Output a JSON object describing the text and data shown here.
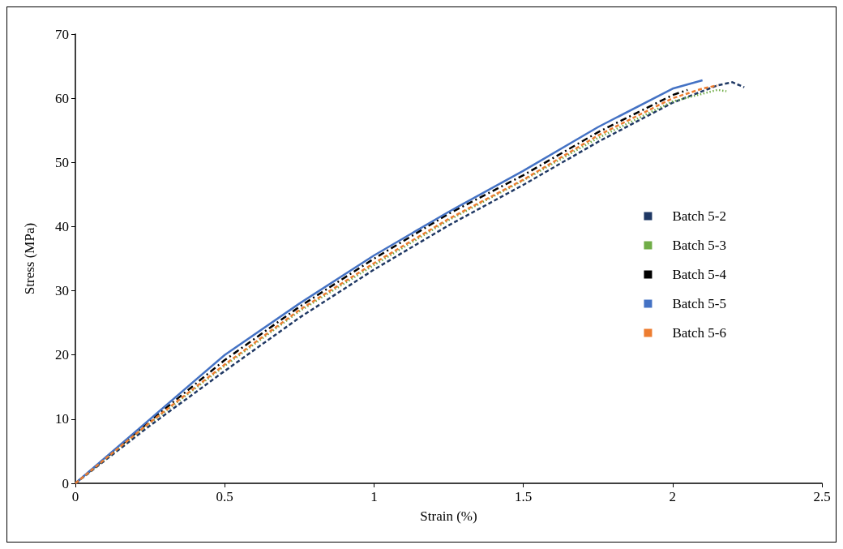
{
  "chart_data": {
    "type": "line",
    "xlabel": "Strain (%)",
    "ylabel": "Stress (MPa)",
    "xlim": [
      0,
      2.5
    ],
    "xticks": [
      0,
      0.5,
      1,
      1.5,
      2,
      2.5
    ],
    "ylim": [
      0,
      70
    ],
    "yticks": [
      0,
      10,
      20,
      30,
      40,
      50,
      60,
      70
    ],
    "grid": false,
    "legend": "right",
    "marker": "none",
    "series": [
      {
        "name": "Batch 5-2",
        "color": "#1f3864",
        "line_style": "dashed",
        "x": [
          0,
          0.25,
          0.5,
          0.75,
          1.0,
          1.25,
          1.5,
          1.75,
          2.0,
          2.15,
          2.2,
          2.24
        ],
        "values": [
          0,
          9,
          17.5,
          25.8,
          33.3,
          40.2,
          46.5,
          53.2,
          59.3,
          62,
          62.5,
          61.7
        ]
      },
      {
        "name": "Batch 5-3",
        "color": "#70ad47",
        "line_style": "dotted",
        "x": [
          0,
          0.25,
          0.5,
          0.75,
          1.0,
          1.25,
          1.5,
          1.75,
          2.0,
          2.15,
          2.18
        ],
        "values": [
          0,
          9.4,
          18.3,
          26.8,
          34,
          41,
          47.2,
          53.8,
          59.5,
          61.3,
          61.1
        ]
      },
      {
        "name": "Batch 5-4",
        "color": "#000000",
        "line_style": "dashdot",
        "x": [
          0,
          0.25,
          0.5,
          0.75,
          1.0,
          1.25,
          1.5,
          1.75,
          2.0,
          2.05
        ],
        "values": [
          0,
          9.7,
          19.2,
          27.5,
          35,
          42,
          48,
          54.7,
          60.5,
          61.3
        ]
      },
      {
        "name": "Batch 5-5",
        "color": "#4472c4",
        "line_style": "solid",
        "x": [
          0,
          0.25,
          0.5,
          0.75,
          1.0,
          1.25,
          1.5,
          1.75,
          2.0,
          2.1
        ],
        "values": [
          0,
          10,
          20,
          28,
          35.5,
          42.3,
          48.7,
          55.5,
          61.5,
          62.8
        ]
      },
      {
        "name": "Batch 5-6",
        "color": "#ed7d31",
        "line_style": "dashed",
        "x": [
          0,
          0.25,
          0.5,
          0.75,
          1.0,
          1.25,
          1.5,
          1.75,
          2.0,
          2.1,
          2.15
        ],
        "values": [
          0,
          9.5,
          18.5,
          27,
          34.3,
          41.2,
          47.3,
          54.2,
          60,
          61.5,
          62
        ]
      }
    ]
  }
}
